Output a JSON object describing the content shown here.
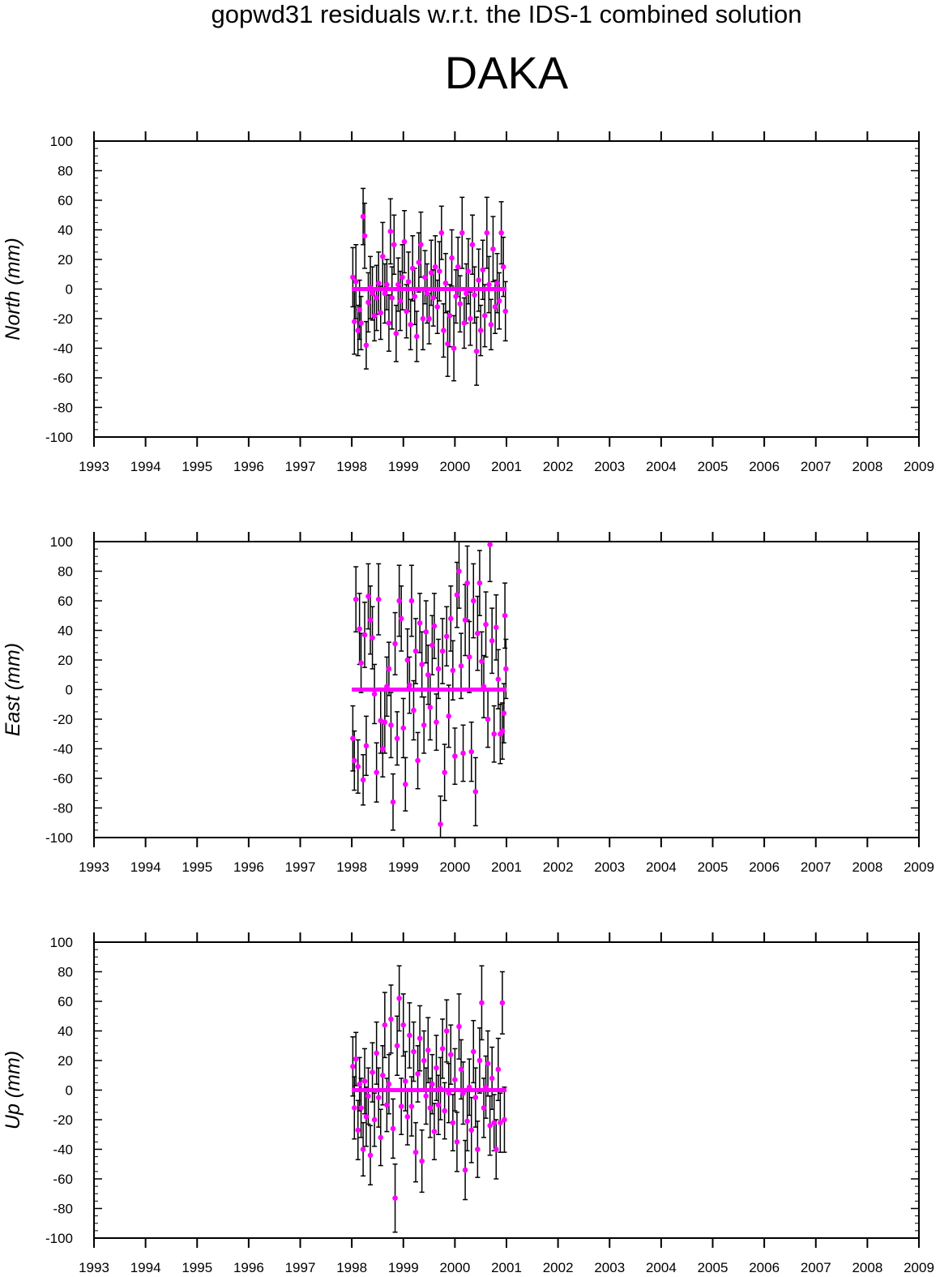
{
  "header": {
    "title": "gopwd31 residuals w.r.t. the IDS-1 combined solution",
    "station": "DAKA"
  },
  "colors": {
    "points": "#ff00ff",
    "errorbars": "#000000",
    "zero_line": "#ff00ff"
  },
  "chart_data": [
    {
      "type": "scatter",
      "ylabel": "North (mm)",
      "xlim": [
        1993,
        2009
      ],
      "ylim": [
        -100,
        100
      ],
      "x_ticks": [
        1993,
        1994,
        1995,
        1996,
        1997,
        1998,
        1999,
        2000,
        2001,
        2002,
        2003,
        2004,
        2005,
        2006,
        2007,
        2008,
        2009
      ],
      "y_ticks": [
        -100,
        -80,
        -60,
        -40,
        -20,
        0,
        20,
        40,
        60,
        80,
        100
      ],
      "zero_line": [
        1998.0,
        2001.0
      ],
      "points": [
        [
          1998.02,
          8,
          20
        ],
        [
          1998.05,
          -22,
          22
        ],
        [
          1998.08,
          5,
          25
        ],
        [
          1998.12,
          -28,
          17
        ],
        [
          1998.15,
          -14,
          20
        ],
        [
          1998.18,
          -23,
          18
        ],
        [
          1998.22,
          49,
          19
        ],
        [
          1998.25,
          36,
          22
        ],
        [
          1998.28,
          -38,
          16
        ],
        [
          1998.32,
          -9,
          20
        ],
        [
          1998.36,
          1,
          21
        ],
        [
          1998.4,
          -3,
          18
        ],
        [
          1998.44,
          -18,
          17
        ],
        [
          1998.48,
          -6,
          22
        ],
        [
          1998.52,
          4,
          21
        ],
        [
          1998.56,
          -16,
          18
        ],
        [
          1998.6,
          22,
          23
        ],
        [
          1998.64,
          -3,
          20
        ],
        [
          1998.68,
          3,
          17
        ],
        [
          1998.72,
          -23,
          19
        ],
        [
          1998.75,
          39,
          22
        ],
        [
          1998.78,
          -6,
          21
        ],
        [
          1998.82,
          30,
          20
        ],
        [
          1998.86,
          -30,
          19
        ],
        [
          1998.9,
          3,
          18
        ],
        [
          1998.94,
          -8,
          20
        ],
        [
          1998.98,
          8,
          22
        ],
        [
          1999.02,
          32,
          21
        ],
        [
          1999.06,
          -15,
          18
        ],
        [
          1999.1,
          5,
          20
        ],
        [
          1999.14,
          -24,
          17
        ],
        [
          1999.18,
          14,
          22
        ],
        [
          1999.22,
          -5,
          19
        ],
        [
          1999.26,
          -32,
          17
        ],
        [
          1999.3,
          18,
          20
        ],
        [
          1999.34,
          30,
          22
        ],
        [
          1999.38,
          -20,
          21
        ],
        [
          1999.42,
          8,
          18
        ],
        [
          1999.46,
          -3,
          20
        ],
        [
          1999.5,
          -20,
          17
        ],
        [
          1999.54,
          11,
          22
        ],
        [
          1999.58,
          -6,
          19
        ],
        [
          1999.62,
          15,
          21
        ],
        [
          1999.66,
          -12,
          18
        ],
        [
          1999.7,
          12,
          20
        ],
        [
          1999.74,
          38,
          18
        ],
        [
          1999.78,
          -28,
          18
        ],
        [
          1999.82,
          4,
          20
        ],
        [
          1999.86,
          -37,
          22
        ],
        [
          1999.9,
          -18,
          21
        ],
        [
          1999.94,
          21,
          19
        ],
        [
          1999.98,
          -40,
          22
        ],
        [
          2000.02,
          -5,
          18
        ],
        [
          2000.06,
          15,
          20
        ],
        [
          2000.1,
          -10,
          19
        ],
        [
          2000.14,
          38,
          24
        ],
        [
          2000.18,
          -23,
          17
        ],
        [
          2000.22,
          -3,
          20
        ],
        [
          2000.26,
          12,
          22
        ],
        [
          2000.3,
          -20,
          18
        ],
        [
          2000.34,
          30,
          20
        ],
        [
          2000.38,
          -4,
          19
        ],
        [
          2000.42,
          -42,
          23
        ],
        [
          2000.46,
          6,
          21
        ],
        [
          2000.5,
          -28,
          17
        ],
        [
          2000.54,
          13,
          20
        ],
        [
          2000.58,
          -18,
          21
        ],
        [
          2000.62,
          38,
          24
        ],
        [
          2000.66,
          3,
          19
        ],
        [
          2000.7,
          -24,
          17
        ],
        [
          2000.74,
          27,
          22
        ],
        [
          2000.78,
          -12,
          18
        ],
        [
          2000.82,
          4,
          20
        ],
        [
          2000.86,
          -8,
          19
        ],
        [
          2000.9,
          38,
          21
        ],
        [
          2000.94,
          15,
          20
        ],
        [
          2000.98,
          -15,
          20
        ]
      ]
    },
    {
      "type": "scatter",
      "ylabel": "East (mm)",
      "xlim": [
        1993,
        2009
      ],
      "ylim": [
        -100,
        100
      ],
      "x_ticks": [
        1993,
        1994,
        1995,
        1996,
        1997,
        1998,
        1999,
        2000,
        2001,
        2002,
        2003,
        2004,
        2005,
        2006,
        2007,
        2008,
        2009
      ],
      "y_ticks": [
        -100,
        -80,
        -60,
        -40,
        -20,
        0,
        20,
        40,
        60,
        80,
        100
      ],
      "zero_line": [
        1998.0,
        2001.0
      ],
      "points": [
        [
          1998.02,
          -33,
          22
        ],
        [
          1998.05,
          -48,
          20
        ],
        [
          1998.08,
          61,
          22
        ],
        [
          1998.12,
          -52,
          18
        ],
        [
          1998.15,
          41,
          24
        ],
        [
          1998.18,
          18,
          20
        ],
        [
          1998.22,
          -61,
          17
        ],
        [
          1998.25,
          37,
          22
        ],
        [
          1998.28,
          -38,
          20
        ],
        [
          1998.32,
          63,
          22
        ],
        [
          1998.36,
          47,
          23
        ],
        [
          1998.4,
          35,
          21
        ],
        [
          1998.44,
          -3,
          20
        ],
        [
          1998.48,
          -56,
          20
        ],
        [
          1998.52,
          61,
          24
        ],
        [
          1998.56,
          -21,
          22
        ],
        [
          1998.6,
          -40,
          19
        ],
        [
          1998.64,
          -22,
          21
        ],
        [
          1998.68,
          2,
          20
        ],
        [
          1998.72,
          14,
          18
        ],
        [
          1998.76,
          -24,
          22
        ],
        [
          1998.8,
          -76,
          19
        ],
        [
          1998.84,
          31,
          21
        ],
        [
          1998.88,
          -33,
          18
        ],
        [
          1998.92,
          60,
          24
        ],
        [
          1998.96,
          48,
          22
        ],
        [
          1999.0,
          -26,
          20
        ],
        [
          1999.04,
          -64,
          18
        ],
        [
          1999.08,
          20,
          21
        ],
        [
          1999.12,
          3,
          19
        ],
        [
          1999.16,
          60,
          24
        ],
        [
          1999.2,
          -14,
          20
        ],
        [
          1999.24,
          26,
          22
        ],
        [
          1999.28,
          -48,
          19
        ],
        [
          1999.32,
          45,
          20
        ],
        [
          1999.36,
          17,
          22
        ],
        [
          1999.4,
          -24,
          19
        ],
        [
          1999.44,
          39,
          21
        ],
        [
          1999.48,
          10,
          20
        ],
        [
          1999.52,
          -12,
          22
        ],
        [
          1999.56,
          30,
          20
        ],
        [
          1999.6,
          43,
          22
        ],
        [
          1999.64,
          -22,
          19
        ],
        [
          1999.68,
          14,
          20
        ],
        [
          1999.72,
          -91,
          19
        ],
        [
          1999.76,
          26,
          22
        ],
        [
          1999.8,
          -56,
          19
        ],
        [
          1999.84,
          36,
          20
        ],
        [
          1999.88,
          -18,
          21
        ],
        [
          1999.92,
          48,
          22
        ],
        [
          1999.96,
          13,
          20
        ],
        [
          2000.0,
          -45,
          19
        ],
        [
          2000.04,
          64,
          22
        ],
        [
          2000.08,
          80,
          25
        ],
        [
          2000.12,
          16,
          22
        ],
        [
          2000.16,
          -43,
          19
        ],
        [
          2000.2,
          47,
          24
        ],
        [
          2000.24,
          72,
          25
        ],
        [
          2000.28,
          22,
          24
        ],
        [
          2000.32,
          -42,
          20
        ],
        [
          2000.36,
          60,
          25
        ],
        [
          2000.4,
          -69,
          23
        ],
        [
          2000.44,
          38,
          25
        ],
        [
          2000.48,
          72,
          22
        ],
        [
          2000.52,
          19,
          20
        ],
        [
          2000.56,
          2,
          21
        ],
        [
          2000.6,
          44,
          22
        ],
        [
          2000.64,
          -20,
          19
        ],
        [
          2000.68,
          98,
          25
        ],
        [
          2000.72,
          33,
          22
        ],
        [
          2000.76,
          -30,
          19
        ],
        [
          2000.8,
          42,
          22
        ],
        [
          2000.84,
          7,
          20
        ],
        [
          2000.88,
          -30,
          20
        ],
        [
          2000.92,
          -28,
          19
        ],
        [
          2000.95,
          -16,
          20
        ],
        [
          2000.97,
          50,
          22
        ],
        [
          2000.99,
          14,
          20
        ]
      ]
    },
    {
      "type": "scatter",
      "ylabel": "Up (mm)",
      "xlim": [
        1993,
        2009
      ],
      "ylim": [
        -100,
        100
      ],
      "x_ticks": [
        1993,
        1994,
        1995,
        1996,
        1997,
        1998,
        1999,
        2000,
        2001,
        2002,
        2003,
        2004,
        2005,
        2006,
        2007,
        2008,
        2009
      ],
      "y_ticks": [
        -100,
        -80,
        -60,
        -40,
        -20,
        0,
        20,
        40,
        60,
        80,
        100
      ],
      "zero_line": [
        1998.0,
        2001.0
      ],
      "points": [
        [
          1998.02,
          16,
          20
        ],
        [
          1998.05,
          -12,
          21
        ],
        [
          1998.08,
          21,
          18
        ],
        [
          1998.12,
          -27,
          20
        ],
        [
          1998.15,
          4,
          18
        ],
        [
          1998.18,
          -12,
          20
        ],
        [
          1998.22,
          -40,
          18
        ],
        [
          1998.25,
          6,
          22
        ],
        [
          1998.28,
          -18,
          20
        ],
        [
          1998.32,
          -4,
          19
        ],
        [
          1998.36,
          -44,
          20
        ],
        [
          1998.4,
          12,
          20
        ],
        [
          1998.44,
          -20,
          18
        ],
        [
          1998.48,
          25,
          21
        ],
        [
          1998.52,
          -5,
          20
        ],
        [
          1998.56,
          -32,
          19
        ],
        [
          1998.6,
          10,
          20
        ],
        [
          1998.64,
          44,
          22
        ],
        [
          1998.68,
          -10,
          18
        ],
        [
          1998.72,
          4,
          20
        ],
        [
          1998.76,
          48,
          23
        ],
        [
          1998.8,
          -26,
          20
        ],
        [
          1998.84,
          -73,
          23
        ],
        [
          1998.88,
          30,
          20
        ],
        [
          1998.92,
          62,
          22
        ],
        [
          1998.96,
          -11,
          19
        ],
        [
          1999.0,
          44,
          21
        ],
        [
          1999.04,
          6,
          20
        ],
        [
          1999.08,
          -18,
          19
        ],
        [
          1999.12,
          37,
          22
        ],
        [
          1999.16,
          -11,
          20
        ],
        [
          1999.2,
          26,
          20
        ],
        [
          1999.24,
          -42,
          20
        ],
        [
          1999.28,
          11,
          19
        ],
        [
          1999.32,
          35,
          22
        ],
        [
          1999.36,
          -48,
          21
        ],
        [
          1999.4,
          20,
          20
        ],
        [
          1999.44,
          -4,
          19
        ],
        [
          1999.48,
          27,
          22
        ],
        [
          1999.52,
          -12,
          20
        ],
        [
          1999.56,
          4,
          20
        ],
        [
          1999.6,
          -28,
          19
        ],
        [
          1999.64,
          15,
          22
        ],
        [
          1999.68,
          -10,
          20
        ],
        [
          1999.72,
          1,
          21
        ],
        [
          1999.76,
          28,
          20
        ],
        [
          1999.8,
          -14,
          19
        ],
        [
          1999.84,
          40,
          21
        ],
        [
          1999.88,
          -2,
          20
        ],
        [
          1999.92,
          24,
          20
        ],
        [
          1999.96,
          -22,
          19
        ],
        [
          2000.0,
          7,
          21
        ],
        [
          2000.04,
          -35,
          20
        ],
        [
          2000.08,
          43,
          22
        ],
        [
          2000.12,
          14,
          20
        ],
        [
          2000.16,
          -2,
          21
        ],
        [
          2000.2,
          -54,
          20
        ],
        [
          2000.24,
          -21,
          20
        ],
        [
          2000.28,
          2,
          19
        ],
        [
          2000.32,
          -27,
          22
        ],
        [
          2000.36,
          26,
          21
        ],
        [
          2000.4,
          -5,
          20
        ],
        [
          2000.44,
          -40,
          19
        ],
        [
          2000.48,
          20,
          22
        ],
        [
          2000.52,
          59,
          25
        ],
        [
          2000.56,
          -12,
          20
        ],
        [
          2000.6,
          2,
          21
        ],
        [
          2000.64,
          18,
          22
        ],
        [
          2000.68,
          -24,
          20
        ],
        [
          2000.72,
          8,
          21
        ],
        [
          2000.76,
          -22,
          19
        ],
        [
          2000.8,
          -40,
          20
        ],
        [
          2000.84,
          14,
          21
        ],
        [
          2000.88,
          -22,
          20
        ],
        [
          2000.92,
          59,
          21
        ],
        [
          2000.96,
          -20,
          22
        ]
      ]
    }
  ]
}
